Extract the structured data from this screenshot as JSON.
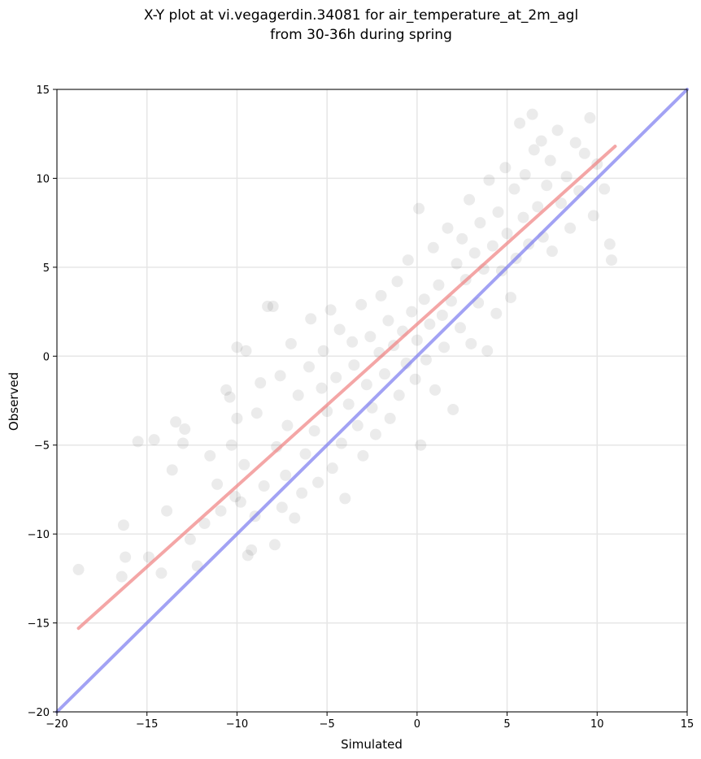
{
  "chart_data": {
    "type": "scatter",
    "title": "X-Y plot at vi.vegagerdin.34081 for air_temperature_at_2m_agl",
    "subtitle": "from 30-36h during spring",
    "xlabel": "Simulated",
    "ylabel": "Observed",
    "xlim": [
      -20,
      15
    ],
    "ylim": [
      -20,
      15
    ],
    "xticks": [
      -20,
      -15,
      -10,
      -5,
      0,
      5,
      10,
      15
    ],
    "yticks": [
      -20,
      -15,
      -10,
      -5,
      0,
      5,
      10,
      15
    ],
    "xtick_labels": [
      "−20",
      "−15",
      "−10",
      "−5",
      "0",
      "5",
      "10",
      "15"
    ],
    "ytick_labels": [
      "−20",
      "−15",
      "−10",
      "−5",
      "0",
      "5",
      "10",
      "15"
    ],
    "grid": true,
    "point_color": "#000000",
    "point_alpha": 0.08,
    "points": [
      [
        -18.8,
        -12.0
      ],
      [
        -16.4,
        -12.4
      ],
      [
        -16.2,
        -11.3
      ],
      [
        -16.3,
        -9.5
      ],
      [
        -15.5,
        -4.8
      ],
      [
        -14.6,
        -4.7
      ],
      [
        -14.9,
        -11.3
      ],
      [
        -14.2,
        -12.2
      ],
      [
        -13.9,
        -8.7
      ],
      [
        -13.6,
        -6.4
      ],
      [
        -13.4,
        -3.7
      ],
      [
        -12.9,
        -4.1
      ],
      [
        -13.0,
        -4.9
      ],
      [
        -12.6,
        -10.3
      ],
      [
        -12.2,
        -11.8
      ],
      [
        -11.8,
        -9.4
      ],
      [
        -11.5,
        -5.6
      ],
      [
        -11.1,
        -7.2
      ],
      [
        -10.9,
        -8.7
      ],
      [
        -10.6,
        -1.9
      ],
      [
        -10.4,
        -2.3
      ],
      [
        -10.3,
        -5.0
      ],
      [
        -10.1,
        -7.9
      ],
      [
        -10.0,
        -3.5
      ],
      [
        -10.0,
        0.5
      ],
      [
        -9.8,
        -8.2
      ],
      [
        -9.6,
        -6.1
      ],
      [
        -9.5,
        0.3
      ],
      [
        -9.4,
        -11.2
      ],
      [
        -9.2,
        -10.9
      ],
      [
        -9.0,
        -9.0
      ],
      [
        -8.9,
        -3.2
      ],
      [
        -8.7,
        -1.5
      ],
      [
        -8.5,
        -7.3
      ],
      [
        -8.3,
        2.8
      ],
      [
        -8.0,
        2.8
      ],
      [
        -7.9,
        -10.6
      ],
      [
        -7.8,
        -5.1
      ],
      [
        -7.6,
        -1.1
      ],
      [
        -7.5,
        -8.5
      ],
      [
        -7.3,
        -6.7
      ],
      [
        -7.2,
        -3.9
      ],
      [
        -7.0,
        0.7
      ],
      [
        -6.8,
        -9.1
      ],
      [
        -6.6,
        -2.2
      ],
      [
        -6.4,
        -7.7
      ],
      [
        -6.2,
        -5.5
      ],
      [
        -6.0,
        -0.6
      ],
      [
        -5.9,
        2.1
      ],
      [
        -5.7,
        -4.2
      ],
      [
        -5.5,
        -7.1
      ],
      [
        -5.3,
        -1.8
      ],
      [
        -5.2,
        0.3
      ],
      [
        -5.0,
        -3.1
      ],
      [
        -4.8,
        2.6
      ],
      [
        -4.7,
        -6.3
      ],
      [
        -4.5,
        -1.2
      ],
      [
        -4.3,
        1.5
      ],
      [
        -4.2,
        -4.9
      ],
      [
        -4.0,
        -8.0
      ],
      [
        -3.8,
        -2.7
      ],
      [
        -3.6,
        0.8
      ],
      [
        -3.5,
        -0.5
      ],
      [
        -3.3,
        -3.9
      ],
      [
        -3.1,
        2.9
      ],
      [
        -3.0,
        -5.6
      ],
      [
        -2.8,
        -1.6
      ],
      [
        -2.6,
        1.1
      ],
      [
        -2.5,
        -2.9
      ],
      [
        -2.3,
        -4.4
      ],
      [
        -2.1,
        0.2
      ],
      [
        -2.0,
        3.4
      ],
      [
        -1.8,
        -1.0
      ],
      [
        -1.6,
        2.0
      ],
      [
        -1.5,
        -3.5
      ],
      [
        -1.3,
        0.6
      ],
      [
        -1.1,
        4.2
      ],
      [
        -1.0,
        -2.2
      ],
      [
        -0.8,
        1.4
      ],
      [
        -0.6,
        -0.4
      ],
      [
        -0.5,
        5.4
      ],
      [
        -0.3,
        2.5
      ],
      [
        -0.1,
        -1.3
      ],
      [
        0.0,
        0.9
      ],
      [
        0.1,
        8.3
      ],
      [
        0.2,
        -5.0
      ],
      [
        0.4,
        3.2
      ],
      [
        0.5,
        -0.2
      ],
      [
        0.7,
        1.8
      ],
      [
        0.9,
        6.1
      ],
      [
        1.0,
        -1.9
      ],
      [
        1.2,
        4.0
      ],
      [
        1.4,
        2.3
      ],
      [
        1.5,
        0.5
      ],
      [
        1.7,
        7.2
      ],
      [
        1.9,
        3.1
      ],
      [
        2.0,
        -3.0
      ],
      [
        2.2,
        5.2
      ],
      [
        2.4,
        1.6
      ],
      [
        2.5,
        6.6
      ],
      [
        2.7,
        4.3
      ],
      [
        2.9,
        8.8
      ],
      [
        3.0,
        0.7
      ],
      [
        3.2,
        5.8
      ],
      [
        3.4,
        3.0
      ],
      [
        3.5,
        7.5
      ],
      [
        3.7,
        4.9
      ],
      [
        3.9,
        0.3
      ],
      [
        4.0,
        9.9
      ],
      [
        4.2,
        6.2
      ],
      [
        4.4,
        2.4
      ],
      [
        4.5,
        8.1
      ],
      [
        4.7,
        4.8
      ],
      [
        4.9,
        10.6
      ],
      [
        5.0,
        6.9
      ],
      [
        5.2,
        3.3
      ],
      [
        5.4,
        9.4
      ],
      [
        5.5,
        5.5
      ],
      [
        5.7,
        13.1
      ],
      [
        5.9,
        7.8
      ],
      [
        6.0,
        10.2
      ],
      [
        6.2,
        6.3
      ],
      [
        6.4,
        13.6
      ],
      [
        6.5,
        11.6
      ],
      [
        6.7,
        8.4
      ],
      [
        6.9,
        12.1
      ],
      [
        7.0,
        6.7
      ],
      [
        7.2,
        9.6
      ],
      [
        7.4,
        11.0
      ],
      [
        7.5,
        5.9
      ],
      [
        7.8,
        12.7
      ],
      [
        8.0,
        8.6
      ],
      [
        8.3,
        10.1
      ],
      [
        8.5,
        7.2
      ],
      [
        8.8,
        12.0
      ],
      [
        9.0,
        9.3
      ],
      [
        9.3,
        11.4
      ],
      [
        9.6,
        13.4
      ],
      [
        9.8,
        7.9
      ],
      [
        10.0,
        10.8
      ],
      [
        10.4,
        9.4
      ],
      [
        10.7,
        6.3
      ],
      [
        10.8,
        5.4
      ]
    ],
    "series": [
      {
        "values": [
          [
            -18.8,
            -15.3
          ],
          [
            11.0,
            11.8
          ]
        ],
        "color": "#f08080"
      },
      {
        "values": [
          [
            -20,
            -20
          ],
          [
            15,
            15
          ]
        ],
        "color": "#7b7bf0"
      }
    ]
  }
}
